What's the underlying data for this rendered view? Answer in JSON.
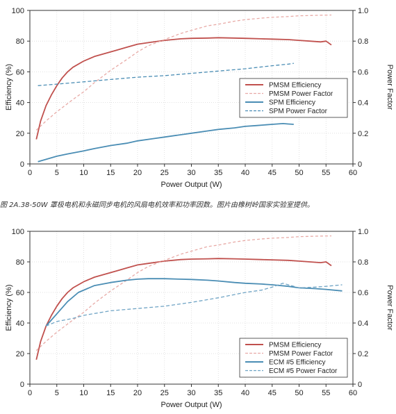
{
  "caption": "图 2A.38-50W 罩极电机和永磁同步电机的风扇电机效率和功率因数。图片由橡树岭国家实验室提供。",
  "colors": {
    "pmsm": "#c0504d",
    "pmsm_pf": "#e8aaa6",
    "blue": "#4a8db4",
    "ecm_pf": "#6ea3c4"
  },
  "chart_data": [
    {
      "type": "line",
      "xlabel": "Power Output (W)",
      "ylabel": "Efficiency (%)",
      "ylabel_right": "Power Factor",
      "xlim": [
        0,
        60
      ],
      "ylim": [
        0,
        100
      ],
      "ylim_right": [
        0,
        1.0
      ],
      "x_ticks": [
        0,
        5,
        10,
        15,
        20,
        25,
        30,
        35,
        40,
        45,
        50,
        55,
        60
      ],
      "y_ticks": [
        0,
        20,
        40,
        60,
        80,
        100
      ],
      "y_ticks_right": [
        "0",
        "0.2",
        "0.4",
        "0.6",
        "0.8",
        "1.0"
      ],
      "grid": true,
      "legend_position": "center-right",
      "series": [
        {
          "name": "PMSM Efficiency",
          "axis": "left",
          "style": "solid",
          "color": "#c0504d",
          "x": [
            1.2,
            2,
            3,
            4,
            5,
            6,
            7,
            8,
            10,
            12,
            14,
            16,
            18,
            20,
            22,
            25,
            28,
            30,
            33,
            35,
            38,
            40,
            43,
            45,
            48,
            50,
            52,
            54,
            55,
            56
          ],
          "y": [
            16,
            28,
            38,
            45,
            51,
            56,
            60,
            63,
            67,
            70,
            72,
            74,
            76,
            78,
            79,
            80.5,
            81.5,
            81.8,
            82,
            82.2,
            82,
            81.8,
            81.5,
            81.3,
            81,
            80.5,
            80,
            79.5,
            80,
            77.5
          ]
        },
        {
          "name": "PMSM Power Factor",
          "axis": "right",
          "style": "dashed",
          "color": "#e8aaa6",
          "x": [
            1.2,
            3,
            5,
            8,
            10,
            12,
            15,
            18,
            20,
            22,
            25,
            28,
            30,
            33,
            35,
            38,
            40,
            43,
            45,
            48,
            50,
            53,
            56
          ],
          "y": [
            0.22,
            0.28,
            0.34,
            0.42,
            0.47,
            0.53,
            0.61,
            0.68,
            0.73,
            0.77,
            0.81,
            0.85,
            0.87,
            0.9,
            0.91,
            0.93,
            0.94,
            0.95,
            0.955,
            0.96,
            0.965,
            0.968,
            0.97
          ]
        },
        {
          "name": "SPM Efficiency",
          "axis": "left",
          "style": "solid",
          "color": "#4a8db4",
          "x": [
            1.5,
            3,
            5,
            7,
            10,
            12,
            15,
            18,
            20,
            23,
            25,
            28,
            30,
            33,
            35,
            38,
            40,
            42,
            45,
            47,
            48,
            49
          ],
          "y": [
            1.5,
            3,
            5,
            6.5,
            8.5,
            10,
            12,
            13.5,
            15,
            16.5,
            17.5,
            19,
            20,
            21.5,
            22.5,
            23.5,
            24.5,
            25,
            25.8,
            26.3,
            26,
            25.8
          ]
        },
        {
          "name": "SPM Power Factor",
          "axis": "right",
          "style": "dashed",
          "color": "#4a8db4",
          "x": [
            1.5,
            5,
            10,
            15,
            20,
            25,
            30,
            35,
            40,
            45,
            48,
            49
          ],
          "y": [
            0.51,
            0.52,
            0.535,
            0.55,
            0.565,
            0.575,
            0.59,
            0.605,
            0.62,
            0.64,
            0.65,
            0.655
          ]
        }
      ]
    },
    {
      "type": "line",
      "xlabel": "Power Output (W)",
      "ylabel": "Efficiency (%)",
      "ylabel_right": "Power Factor",
      "xlim": [
        0,
        60
      ],
      "ylim": [
        0,
        100
      ],
      "ylim_right": [
        0,
        1.0
      ],
      "x_ticks": [
        0,
        5,
        10,
        15,
        20,
        25,
        30,
        35,
        40,
        45,
        50,
        55,
        60
      ],
      "y_ticks": [
        0,
        20,
        40,
        60,
        80,
        100
      ],
      "y_ticks_right": [
        "0",
        "0.2",
        "0.4",
        "0.6",
        "0.8",
        "1.0"
      ],
      "grid": true,
      "legend_position": "bottom-right",
      "series": [
        {
          "name": "PMSM Efficiency",
          "axis": "left",
          "style": "solid",
          "color": "#c0504d",
          "x": [
            1.2,
            2,
            3,
            4,
            5,
            6,
            7,
            8,
            10,
            12,
            14,
            16,
            18,
            20,
            22,
            25,
            28,
            30,
            33,
            35,
            38,
            40,
            43,
            45,
            48,
            50,
            52,
            54,
            55,
            56
          ],
          "y": [
            16,
            28,
            38,
            45,
            51,
            56,
            60,
            63,
            67,
            70,
            72,
            74,
            76,
            78,
            79,
            80.5,
            81.5,
            81.8,
            82,
            82.2,
            82,
            81.8,
            81.5,
            81.3,
            81,
            80.5,
            80,
            79.5,
            80,
            77.5
          ]
        },
        {
          "name": "PMSM Power Factor",
          "axis": "right",
          "style": "dashed",
          "color": "#e8aaa6",
          "x": [
            1.2,
            3,
            5,
            8,
            10,
            12,
            15,
            18,
            20,
            22,
            25,
            28,
            30,
            33,
            35,
            38,
            40,
            43,
            45,
            48,
            50,
            53,
            56
          ],
          "y": [
            0.22,
            0.28,
            0.34,
            0.42,
            0.47,
            0.53,
            0.61,
            0.68,
            0.73,
            0.77,
            0.81,
            0.85,
            0.87,
            0.9,
            0.91,
            0.93,
            0.94,
            0.95,
            0.955,
            0.96,
            0.965,
            0.968,
            0.97
          ]
        },
        {
          "name": "ECM #5 Efficiency",
          "axis": "left",
          "style": "solid",
          "color": "#4a8db4",
          "x": [
            3,
            5,
            7,
            9,
            12,
            15,
            18,
            20,
            22,
            25,
            28,
            30,
            33,
            35,
            38,
            40,
            43,
            45,
            48,
            50,
            53,
            55,
            58
          ],
          "y": [
            38,
            46,
            54,
            60,
            64.5,
            66.5,
            68,
            68.7,
            69,
            69,
            68.7,
            68.5,
            68,
            67.5,
            66.5,
            66,
            65.5,
            65,
            64,
            63,
            62.5,
            62,
            61
          ]
        },
        {
          "name": "ECM #5 Power Factor",
          "axis": "right",
          "style": "dashed",
          "color": "#6ea3c4",
          "x": [
            3,
            5,
            8,
            10,
            15,
            20,
            25,
            30,
            35,
            40,
            43,
            45,
            47,
            50,
            53,
            55,
            58
          ],
          "y": [
            0.38,
            0.41,
            0.43,
            0.45,
            0.48,
            0.495,
            0.51,
            0.535,
            0.565,
            0.6,
            0.615,
            0.635,
            0.66,
            0.63,
            0.635,
            0.64,
            0.65
          ]
        }
      ]
    }
  ]
}
